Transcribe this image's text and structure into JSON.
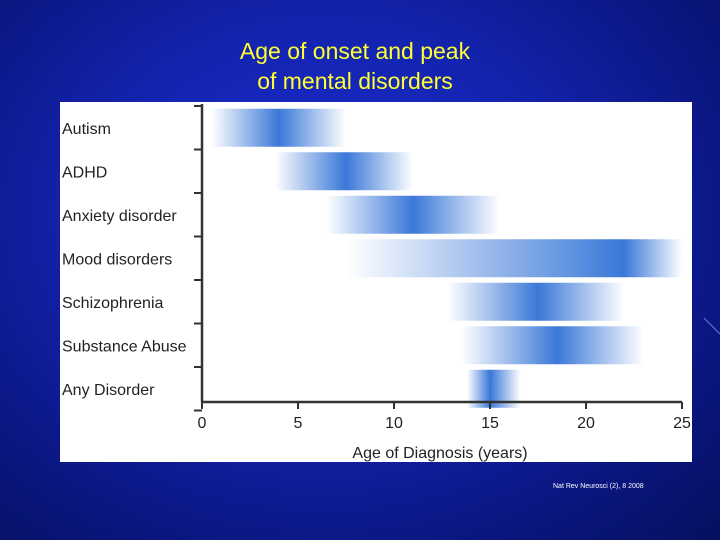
{
  "slide": {
    "title_line1": "Age of onset and peak",
    "title_line2": "of mental disorders",
    "citation": "Nat Rev Neurosci (2), 8 2008"
  },
  "colors": {
    "background": "#1424b0",
    "title": "#ffff33",
    "bar_peak": "#3a78d8",
    "bar_edge": "#ffffff"
  },
  "chart_data": {
    "type": "bar",
    "orientation": "horizontal-range",
    "title": "",
    "xlabel": "Age of Diagnosis (years)",
    "ylabel": "",
    "xlim": [
      0,
      25
    ],
    "xticks": [
      "0",
      "5",
      "10",
      "15",
      "20",
      "25"
    ],
    "grid": false,
    "categories": [
      "Autism",
      "ADHD",
      "Anxiety disorder",
      "Mood disorders",
      "Schizophrenia",
      "Substance Abuse",
      "Any Disorder"
    ],
    "ranges": [
      {
        "category": "Autism",
        "start": 0.5,
        "peak": 4,
        "end": 7.5
      },
      {
        "category": "ADHD",
        "start": 3.8,
        "peak": 7.5,
        "end": 11
      },
      {
        "category": "Anxiety disorder",
        "start": 6.5,
        "peak": 11,
        "end": 15.5
      },
      {
        "category": "Mood disorders",
        "start": 7.5,
        "peak": 22,
        "end": 25
      },
      {
        "category": "Schizophrenia",
        "start": 12.8,
        "peak": 17.5,
        "end": 22
      },
      {
        "category": "Substance Abuse",
        "start": 13.5,
        "peak": 18.5,
        "end": 23
      },
      {
        "category": "Any Disorder",
        "start": 13.8,
        "peak": 15,
        "end": 16.6
      }
    ]
  }
}
